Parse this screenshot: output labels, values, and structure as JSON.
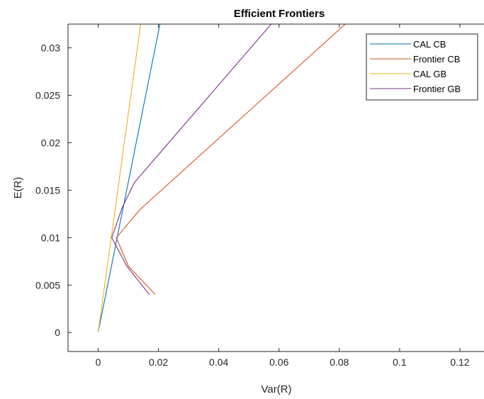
{
  "chart_data": {
    "type": "line",
    "title": "Efficient Frontiers",
    "xlabel": "Var(R)",
    "ylabel": "E(R)",
    "xlim": [
      -0.01,
      0.128
    ],
    "ylim": [
      -0.002,
      0.0325
    ],
    "xticks": [
      0,
      0.02,
      0.04,
      0.06,
      0.08,
      0.1,
      0.12
    ],
    "xtick_labels": [
      "0",
      "0.02",
      "0.04",
      "0.06",
      "0.08",
      "0.1",
      "0.12"
    ],
    "yticks": [
      0,
      0.005,
      0.01,
      0.015,
      0.02,
      0.025,
      0.03
    ],
    "ytick_labels": [
      "0",
      "0.005",
      "0.01",
      "0.015",
      "0.02",
      "0.025",
      "0.03"
    ],
    "grid": false,
    "legend_position": "top-right",
    "series": [
      {
        "name": "CAL CB",
        "color": "#0072BD",
        "points": [
          [
            0.0,
            0.0
          ],
          [
            0.0205,
            0.0325
          ]
        ]
      },
      {
        "name": "Frontier CB",
        "color": "#D95319",
        "points": [
          [
            0.019,
            0.004
          ],
          [
            0.01,
            0.007
          ],
          [
            0.006,
            0.01
          ],
          [
            0.014,
            0.013
          ],
          [
            0.082,
            0.0325
          ]
        ]
      },
      {
        "name": "CAL GB",
        "color": "#EDB120",
        "points": [
          [
            0.0,
            0.0
          ],
          [
            0.0141,
            0.0325
          ]
        ]
      },
      {
        "name": "Frontier GB",
        "color": "#7E2F8E",
        "points": [
          [
            0.017,
            0.004
          ],
          [
            0.0095,
            0.007
          ],
          [
            0.0045,
            0.01
          ],
          [
            0.008,
            0.0132
          ],
          [
            0.012,
            0.0158
          ],
          [
            0.0574,
            0.0325
          ]
        ]
      }
    ]
  }
}
